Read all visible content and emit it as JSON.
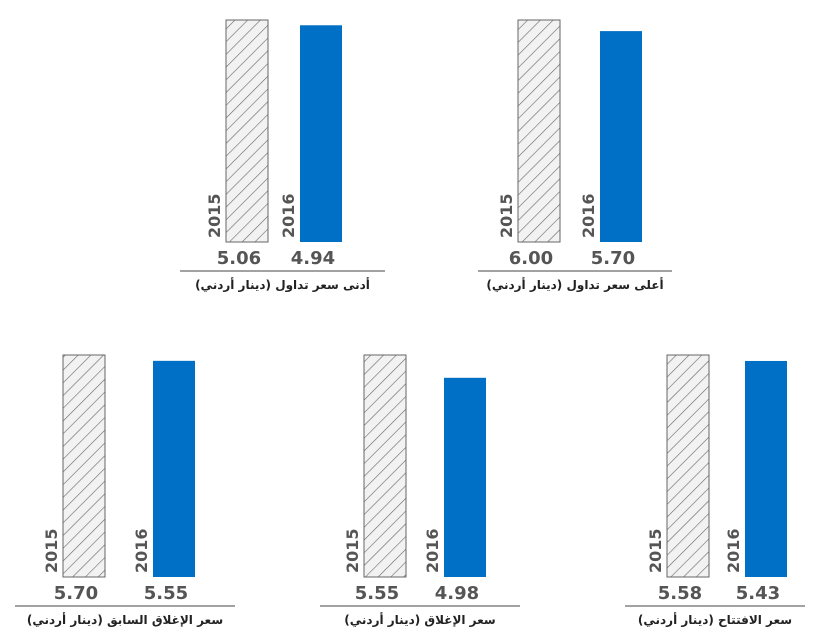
{
  "chart_data": [
    {
      "type": "bar",
      "title": "أعلى سعر تداول (دينار أردني)",
      "categories": [
        "2015",
        "2016"
      ],
      "values": [
        6.0,
        5.7
      ],
      "value_labels": [
        "6.00",
        "5.70"
      ],
      "color": "#0070c6"
    },
    {
      "type": "bar",
      "title": "أدنى سعر تداول (دينار أردني)",
      "categories": [
        "2015",
        "2016"
      ],
      "values": [
        5.06,
        4.94
      ],
      "value_labels": [
        "5.06",
        "4.94"
      ],
      "color": "#0070c6"
    },
    {
      "type": "bar",
      "title": "سعر الافتتاح (دينار أردني)",
      "categories": [
        "2015",
        "2016"
      ],
      "values": [
        5.58,
        5.43
      ],
      "value_labels": [
        "5.58",
        "5.43"
      ],
      "color": "#0070c6"
    },
    {
      "type": "bar",
      "title": "سعر الإغلاق (دينار أردني)",
      "categories": [
        "2015",
        "2016"
      ],
      "values": [
        5.55,
        4.98
      ],
      "value_labels": [
        "5.55",
        "4.98"
      ],
      "color": "#0070c6"
    },
    {
      "type": "bar",
      "title": "سعر الإغلاق السابق (دينار أردني)",
      "categories": [
        "2015",
        "2016"
      ],
      "values": [
        5.7,
        5.55
      ],
      "value_labels": [
        "5.70",
        "5.55"
      ],
      "color": "#0070c6"
    }
  ]
}
